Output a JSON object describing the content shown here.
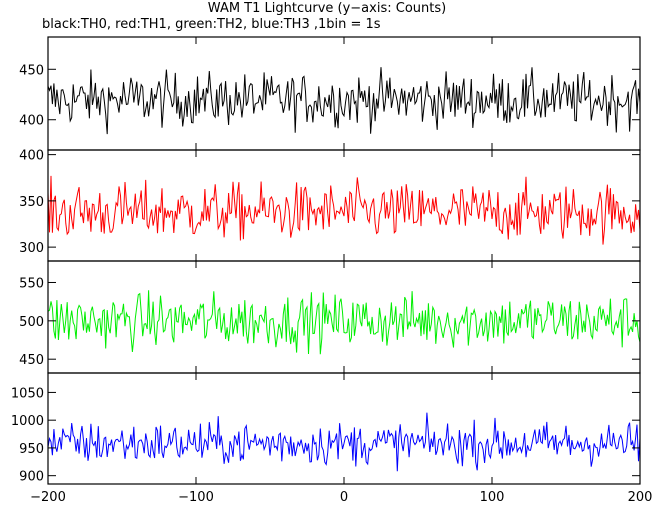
{
  "chart_data": {
    "type": "line",
    "title": "WAM T1 Lightcurve (y−axis: Counts)",
    "subtitle": "black:TH0, red:TH1, green:TH2, blue:TH3 ,1bin = 1s",
    "xlabel": "",
    "xlim": [
      -200,
      200
    ],
    "x_ticks": [
      -200,
      -100,
      0,
      100,
      200
    ],
    "x_tick_labels": [
      "−200",
      "−100",
      "0",
      "100",
      "200"
    ],
    "grid": false,
    "panels": [
      {
        "color": "#000000",
        "ylim": [
          370,
          482
        ],
        "y_ticks": [
          400,
          450
        ],
        "mean": 420,
        "amplitude": 24
      },
      {
        "color": "#ff0000",
        "ylim": [
          285,
          405
        ],
        "y_ticks": [
          300,
          350,
          400
        ],
        "mean": 338,
        "amplitude": 28
      },
      {
        "color": "#00ee00",
        "ylim": [
          432,
          578
        ],
        "y_ticks": [
          450,
          500,
          550
        ],
        "mean": 500,
        "amplitude": 32
      },
      {
        "color": "#0000ff",
        "ylim": [
          885,
          1085
        ],
        "y_ticks": [
          900,
          950,
          1000,
          1050
        ],
        "mean": 958,
        "amplitude": 35
      }
    ]
  }
}
